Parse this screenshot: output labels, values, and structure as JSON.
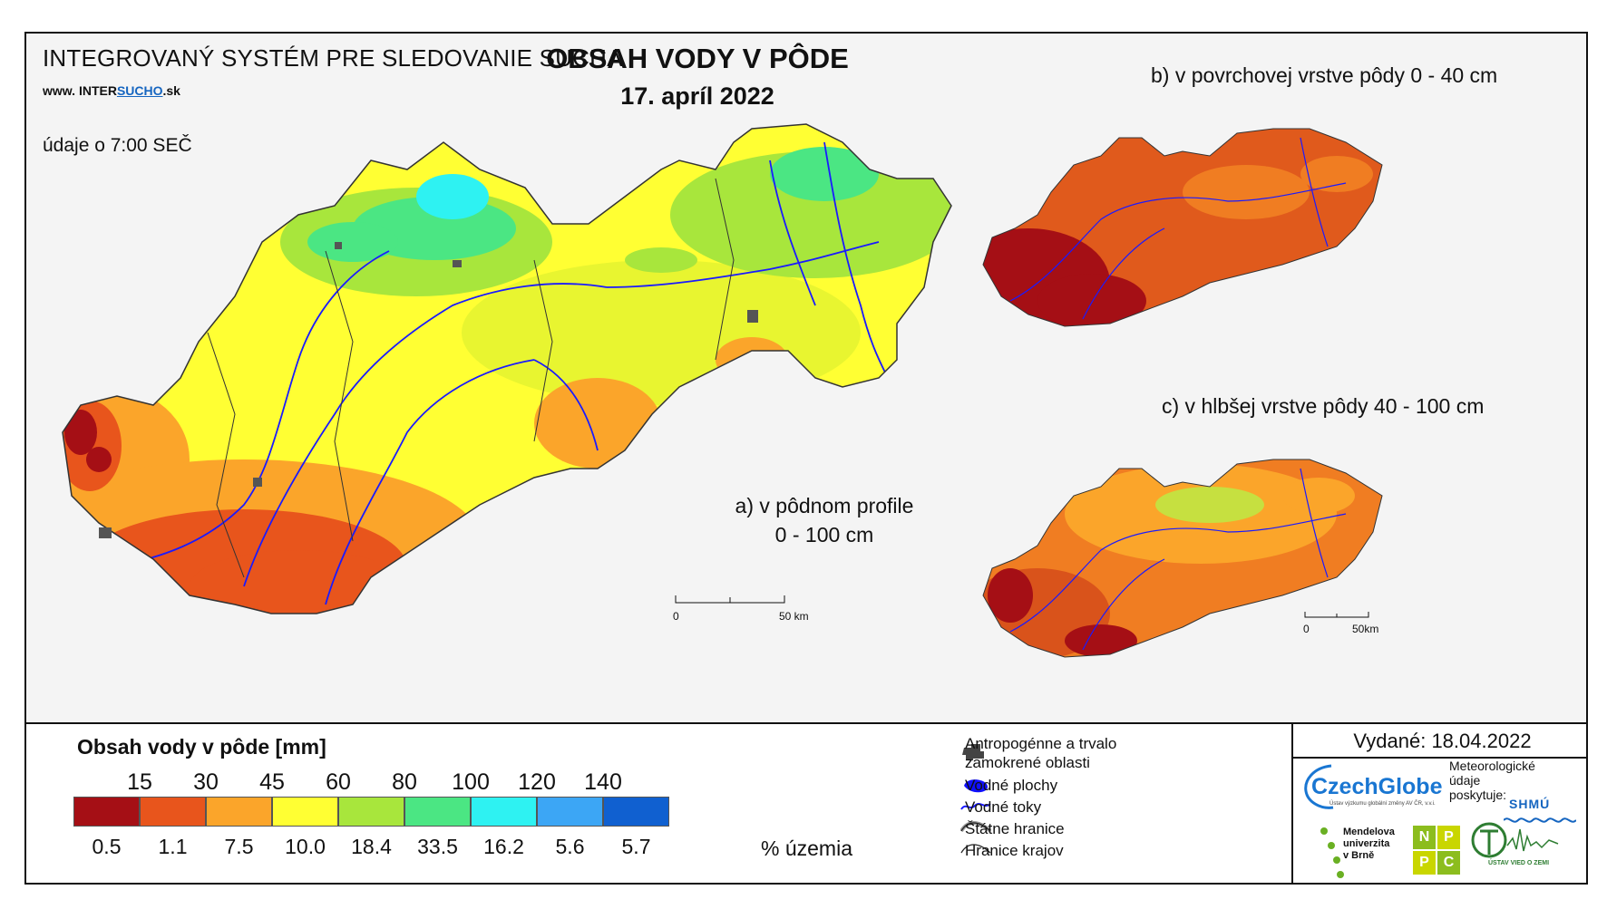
{
  "header": {
    "system_title": "INTEGROVANÝ SYSTÉM PRE SLEDOVANIE SUCHA",
    "site_prefix": "www. ",
    "site_inter": "INTER",
    "site_sucho": "SUCHO",
    "site_suffix": ".sk",
    "time_note": "údaje o 7:00 SEČ"
  },
  "title": {
    "main": "OBSAH VODY V PÔDE",
    "date": "17. apríl 2022"
  },
  "maps": {
    "a_label_line1": "a) v pôdnom profile",
    "a_label_line2": "0 - 100 cm",
    "b_label": "b) v povrchovej vrstve pôdy 0 - 40 cm",
    "c_label": "c) v hlbšej vrstve pôdy 40 - 100 cm",
    "scale_main_start": "0",
    "scale_main_end": "50 km",
    "scale_small_start": "0",
    "scale_small_end": "50km"
  },
  "legend": {
    "title": "Obsah vody v pôde  [mm]",
    "thresholds": [
      "15",
      "30",
      "45",
      "60",
      "80",
      "100",
      "120",
      "140"
    ],
    "colors": [
      "#a50f15",
      "#e8551c",
      "#fba52a",
      "#ffff33",
      "#a8e63c",
      "#4be683",
      "#2ef2f2",
      "#3ca6f5",
      "#1060d0"
    ],
    "percentages": [
      "0.5",
      "1.1",
      "7.5",
      "10.0",
      "18.4",
      "33.5",
      "16.2",
      "5.6",
      "5.7"
    ],
    "percent_unit": "% územia"
  },
  "overlays": {
    "anthropogenic_line1": "Antropogénne a trvalo",
    "anthropogenic_line2": "zamokrené oblasti",
    "water_bodies": "Vodné plochy",
    "rivers": "Vodné toky",
    "state_border": "Štátne hranice",
    "region_border": "Hranice krajov"
  },
  "footer": {
    "issued": "Vydané: 18.04.2022",
    "czechglobe": "CzechGlobe",
    "czechglobe_sub": "Ústav výzkumu globální změny AV ČR, v.v.i.",
    "meteo_line1": "Meteorologické",
    "meteo_line2": "údaje",
    "meteo_line3": "poskytuje:",
    "shmu": "SHMÚ",
    "mendel_line1": "Mendelova",
    "mendel_line2": "univerzita",
    "mendel_line3": "v Brně",
    "nppc": [
      "N",
      "P",
      "P",
      "C"
    ],
    "uvz": "ÚSTAV VIED O ZEMI"
  }
}
